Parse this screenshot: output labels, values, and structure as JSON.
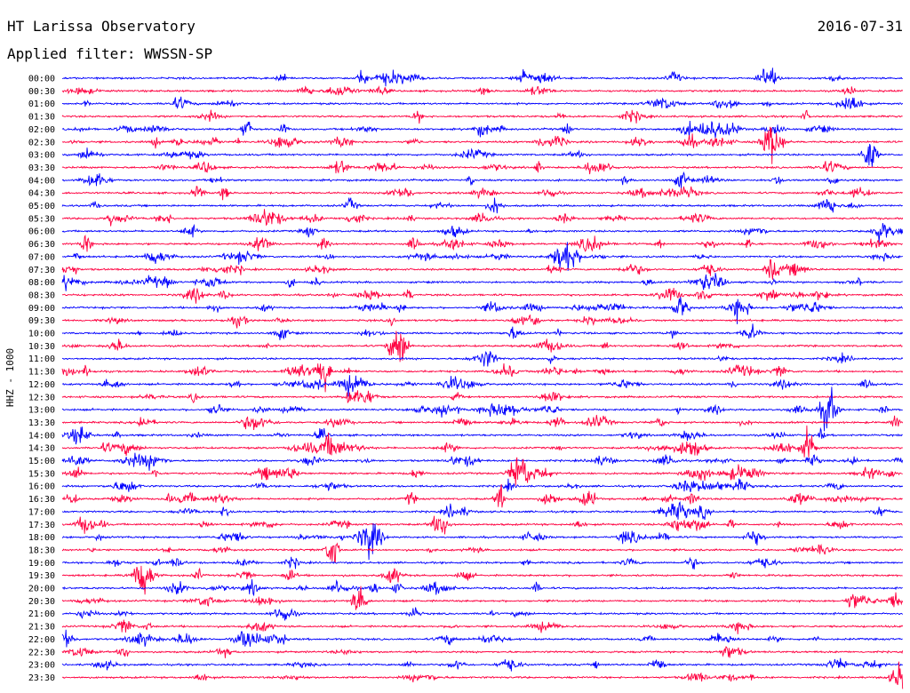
{
  "header": {
    "station": "HT Larissa Observatory",
    "date": "2016-07-31",
    "filter_text": "Applied filter: WWSSN-SP"
  },
  "colors": {
    "even_row": "#0000ff",
    "odd_row": "#ff0040",
    "text": "#000000"
  },
  "chart_data": {
    "type": "line",
    "ylabel": "HHZ - 1000",
    "rows": [
      "00:00",
      "00:30",
      "01:00",
      "01:30",
      "02:00",
      "02:30",
      "03:00",
      "03:30",
      "04:00",
      "04:30",
      "05:00",
      "05:30",
      "06:00",
      "06:30",
      "07:00",
      "07:30",
      "08:00",
      "08:30",
      "09:00",
      "09:30",
      "10:00",
      "10:30",
      "11:00",
      "11:30",
      "12:00",
      "12:30",
      "13:00",
      "13:30",
      "14:00",
      "14:30",
      "15:00",
      "15:30",
      "16:00",
      "16:30",
      "17:00",
      "17:30",
      "18:00",
      "18:30",
      "19:00",
      "19:30",
      "20:00",
      "20:30",
      "21:00",
      "21:30",
      "22:00",
      "22:30",
      "23:00",
      "23:30"
    ],
    "row_minutes": 30,
    "grid": false
  }
}
